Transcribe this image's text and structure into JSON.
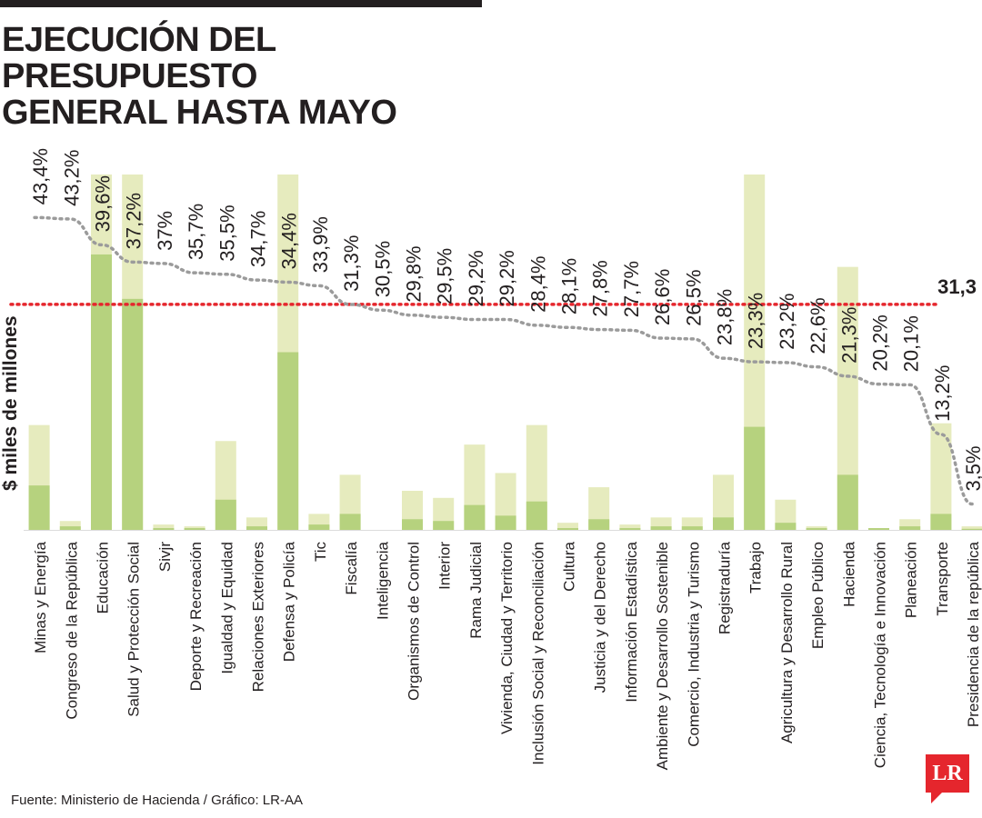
{
  "header": {
    "title_line1": "EJECUCIÓN DEL PRESUPUESTO",
    "title_line2": "GENERAL HASTA MAYO"
  },
  "footer": {
    "source": "Fuente: Ministerio de Hacienda / Gráfico: LR-AA"
  },
  "logo": {
    "text": "LR"
  },
  "colors": {
    "bar_total": "#e6ebbe",
    "bar_executed": "#b6d27e",
    "execution_line": "#9b9b9b",
    "average_line": "#e5262d",
    "text": "#231f20"
  },
  "chart_data": {
    "type": "bar",
    "ylabel": "$ miles de millones",
    "ylim": [
      0,
      100
    ],
    "average_label": "31,3",
    "average_value": 31.3,
    "categories": [
      "Minas y Energía",
      "Congreso de la República",
      "Educación",
      "Salud y Protección Social",
      "Sivjr",
      "Deporte y Recreación",
      "Igualdad y Equidad",
      "Relaciones Exteriores",
      "Defensa y Policía",
      "Tic",
      "Fiscalía",
      "Inteligencia",
      "Organismos de Control",
      "Interior",
      "Rama Judicial",
      "Vivienda, Ciudad y Territorio",
      "Inclusión Social y Reconciliación",
      "Cultura",
      "Justicia y del Derecho",
      "Información Estadística",
      "Ambiente y Desarrollo Sostenible",
      "Comercio, Industria y Turismo",
      "Registraduría",
      "Trabajo",
      "Agricultura y Desarrollo Rural",
      "Empleo Público",
      "Hacienda",
      "Ciencia, Tecnología e Innovación",
      "Planeación",
      "Transporte",
      "Presidencia de la república"
    ],
    "series": [
      {
        "name": "",
        "values": [
          29.5,
          2.5,
          100,
          100,
          1.5,
          1,
          25,
          3.5,
          100,
          4.5,
          15.5,
          0,
          11,
          9,
          24,
          16,
          29.5,
          2,
          12,
          1.5,
          3.5,
          3.5,
          15.5,
          100,
          8.5,
          1,
          74,
          0.5,
          3,
          30,
          1
        ]
      },
      {
        "name": "",
        "values": [
          12.5,
          1,
          77.5,
          65,
          0.5,
          0.5,
          8.5,
          1,
          50,
          1.5,
          4.5,
          0,
          3,
          2.5,
          7,
          4,
          8,
          0.5,
          3,
          0.5,
          1,
          1,
          3.5,
          29,
          2,
          0.5,
          15.5,
          0.5,
          1,
          4.5,
          0.3
        ]
      }
    ],
    "execution_pct": [
      43.4,
      43.2,
      39.6,
      37.2,
      37,
      35.7,
      35.5,
      34.7,
      34.4,
      33.9,
      31.3,
      30.5,
      29.8,
      29.5,
      29.2,
      29.2,
      28.4,
      28.1,
      27.8,
      27.7,
      26.6,
      26.5,
      23.8,
      23.3,
      23.2,
      22.6,
      21.3,
      20.2,
      20.1,
      13.2,
      3.5
    ],
    "execution_labels": [
      "43,4%",
      "43,2%",
      "39,6%",
      "37,2%",
      "37%",
      "35,7%",
      "35,5%",
      "34,7%",
      "34,4%",
      "33,9%",
      "31,3%",
      "30,5%",
      "29,8%",
      "29,5%",
      "29,2%",
      "29,2%",
      "28,4%",
      "28,1%",
      "27,8%",
      "27,7%",
      "26,6%",
      "26,5%",
      "23,8%",
      "23,3%",
      "23,2%",
      "22,6%",
      "21,3%",
      "20,2%",
      "20,1%",
      "13,2%",
      "3,5%"
    ]
  }
}
